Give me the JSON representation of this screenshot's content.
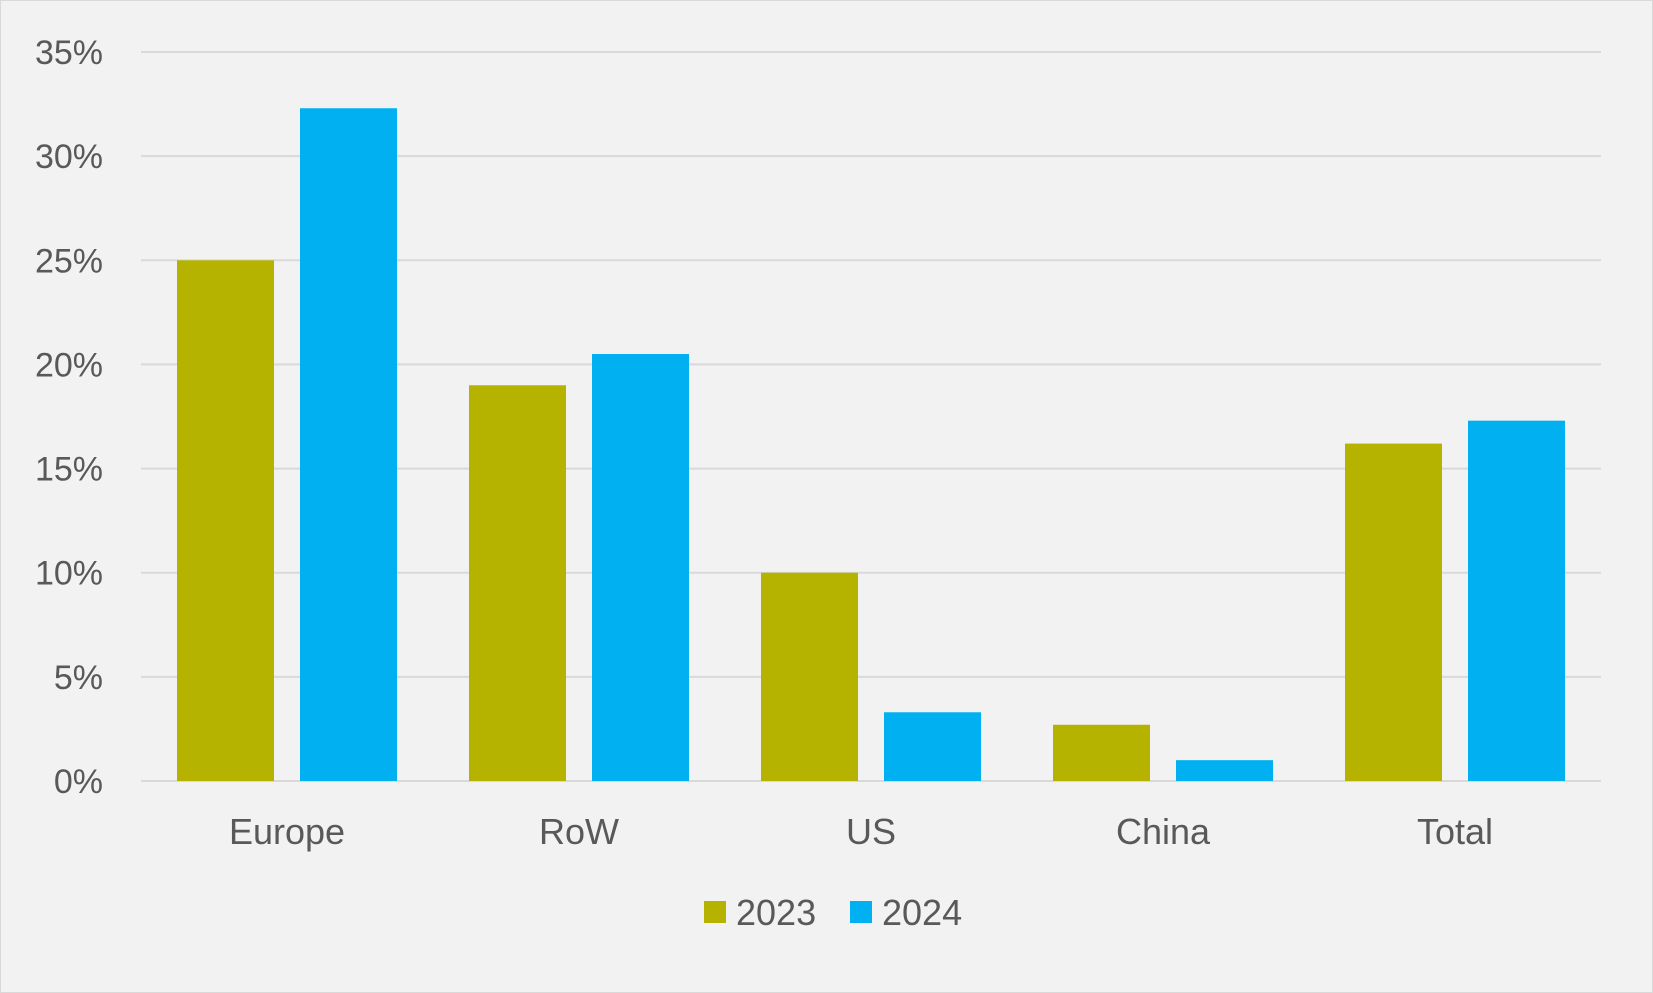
{
  "chart_data": {
    "type": "bar",
    "title": "",
    "xlabel": "",
    "ylabel": "",
    "categories": [
      "Europe",
      "RoW",
      "US",
      "China",
      "Total"
    ],
    "series": [
      {
        "name": "2023",
        "color": "#b5b300",
        "values": [
          25.0,
          19.0,
          10.0,
          2.7,
          16.2
        ]
      },
      {
        "name": "2024",
        "color": "#00b0f0",
        "values": [
          32.3,
          20.5,
          3.3,
          1.0,
          17.3
        ]
      }
    ],
    "ylim": [
      0,
      35
    ],
    "yticks": [
      0,
      5,
      10,
      15,
      20,
      25,
      30,
      35
    ],
    "ytick_labels": [
      "0%",
      "5%",
      "10%",
      "15%",
      "20%",
      "25%",
      "30%",
      "35%"
    ],
    "grid": true,
    "legend_position": "bottom-center"
  }
}
